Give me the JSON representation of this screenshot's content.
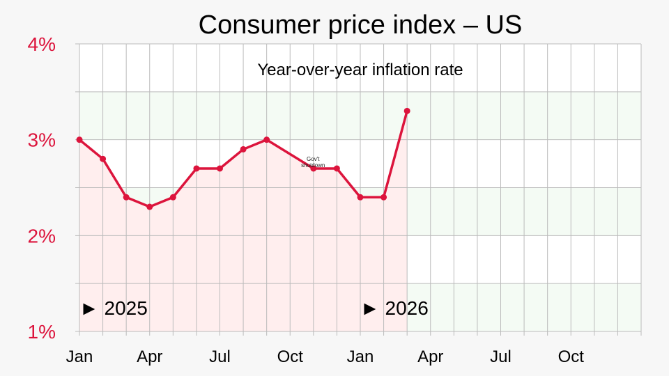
{
  "chart_data": {
    "type": "line",
    "title": "Consumer price index – US",
    "subtitle": "Year-over-year inflation rate",
    "ylim": [
      1,
      4
    ],
    "yticks": [
      1,
      2,
      3,
      4
    ],
    "ytick_labels": [
      "1%",
      "2%",
      "3%",
      "4%"
    ],
    "xlim": [
      0,
      24
    ],
    "x_tick_labels": [
      {
        "x": 0,
        "label": "Jan"
      },
      {
        "x": 3,
        "label": "Apr"
      },
      {
        "x": 6,
        "label": "Jul"
      },
      {
        "x": 9,
        "label": "Oct"
      },
      {
        "x": 12,
        "label": "Jan"
      },
      {
        "x": 15,
        "label": "Apr"
      },
      {
        "x": 18,
        "label": "Jul"
      },
      {
        "x": 21,
        "label": "Oct"
      }
    ],
    "year_labels": [
      {
        "x": 0,
        "label": "► 2025"
      },
      {
        "x": 12,
        "label": "► 2026"
      }
    ],
    "series": [
      {
        "points": [
          [
            0,
            3.0
          ],
          [
            1,
            2.8
          ],
          [
            2,
            2.4
          ],
          [
            3,
            2.3
          ],
          [
            4,
            2.4
          ],
          [
            5,
            2.7
          ],
          [
            6,
            2.7
          ],
          [
            7,
            2.9
          ],
          [
            8,
            3.0
          ],
          [
            10,
            2.7
          ],
          [
            11,
            2.7
          ],
          [
            12,
            2.4
          ],
          [
            13,
            2.4
          ],
          [
            14,
            3.3
          ]
        ]
      }
    ],
    "annotations": [
      {
        "x": 9,
        "y": 2.78,
        "lines": [
          "Gov't",
          "shutdown"
        ]
      }
    ],
    "colors": {
      "line": "#dc143c",
      "area": "#ffeeee",
      "band": "#f4fbf4",
      "plot_bg": "#ffffff",
      "grid": "#bbbbbb"
    }
  }
}
